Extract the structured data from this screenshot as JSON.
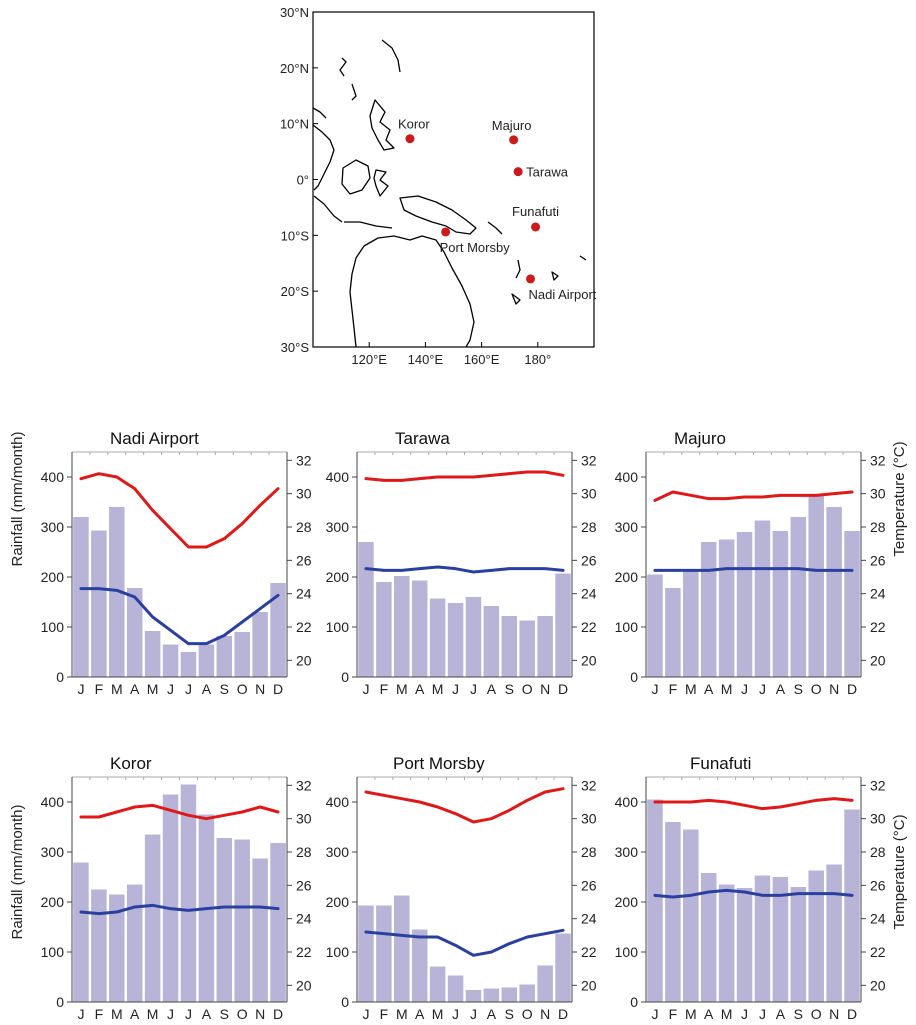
{
  "map": {
    "lat_labels": [
      "30°N",
      "20°N",
      "10°N",
      "0°",
      "10°S",
      "20°S",
      "30°S"
    ],
    "lon_labels": [
      "120°E",
      "140°E",
      "160°E",
      "180°"
    ],
    "sites": [
      {
        "name": "Koror",
        "lon": 134.5,
        "lat": 7.3
      },
      {
        "name": "Majuro",
        "lon": 171.4,
        "lat": 7.1
      },
      {
        "name": "Tarawa",
        "lon": 173.0,
        "lat": 1.4
      },
      {
        "name": "Funafuti",
        "lon": 179.2,
        "lat": -8.5
      },
      {
        "name": "Port Morsby",
        "lon": 147.2,
        "lat": -9.4
      },
      {
        "name": "Nadi Airport",
        "lon": 177.4,
        "lat": -17.8
      }
    ],
    "dot_color": "#cc1a1a"
  },
  "axes_text": {
    "left_label": "Rainfall (mm/month)",
    "right_label": "Temperature (°C)",
    "rain_ticks": [
      0,
      100,
      200,
      300,
      400
    ],
    "temp_ticks": [
      20,
      22,
      24,
      26,
      28,
      30,
      32
    ],
    "months": [
      "J",
      "F",
      "M",
      "A",
      "M",
      "J",
      "J",
      "A",
      "S",
      "O",
      "N",
      "D"
    ]
  },
  "chart_data": [
    {
      "type": "bar",
      "title": "Nadi Airport",
      "categories": [
        "J",
        "F",
        "M",
        "A",
        "M",
        "J",
        "J",
        "A",
        "S",
        "O",
        "N",
        "D"
      ],
      "ylim": [
        0,
        450
      ],
      "y2lim": [
        19,
        32.5
      ],
      "series": [
        {
          "kind": "bar",
          "axis": "left",
          "color": "#b8b4d8",
          "values": [
            320,
            293,
            340,
            178,
            92,
            65,
            50,
            65,
            82,
            90,
            130,
            188
          ]
        },
        {
          "kind": "line",
          "axis": "right",
          "color": "#e01818",
          "values": [
            30.9,
            31.2,
            31.0,
            30.3,
            29.0,
            27.9,
            26.8,
            26.8,
            27.3,
            28.2,
            29.3,
            30.3
          ]
        },
        {
          "kind": "line",
          "axis": "right",
          "color": "#2a40a0",
          "values": [
            24.3,
            24.3,
            24.2,
            23.8,
            22.6,
            21.8,
            21.0,
            21.0,
            21.5,
            22.3,
            23.1,
            23.9
          ]
        }
      ]
    },
    {
      "type": "bar",
      "title": "Tarawa",
      "categories": [
        "J",
        "F",
        "M",
        "A",
        "M",
        "J",
        "J",
        "A",
        "S",
        "O",
        "N",
        "D"
      ],
      "ylim": [
        0,
        450
      ],
      "y2lim": [
        19,
        32.5
      ],
      "series": [
        {
          "kind": "bar",
          "axis": "left",
          "color": "#b8b4d8",
          "values": [
            270,
            190,
            202,
            193,
            157,
            148,
            160,
            142,
            122,
            113,
            122,
            207
          ]
        },
        {
          "kind": "line",
          "axis": "right",
          "color": "#e01818",
          "values": [
            30.9,
            30.8,
            30.8,
            30.9,
            31.0,
            31.0,
            31.0,
            31.1,
            31.2,
            31.3,
            31.3,
            31.1
          ]
        },
        {
          "kind": "line",
          "axis": "right",
          "color": "#2a40a0",
          "values": [
            25.5,
            25.4,
            25.4,
            25.5,
            25.6,
            25.5,
            25.3,
            25.4,
            25.5,
            25.5,
            25.5,
            25.4
          ]
        }
      ]
    },
    {
      "type": "bar",
      "title": "Majuro",
      "categories": [
        "J",
        "F",
        "M",
        "A",
        "M",
        "J",
        "J",
        "A",
        "S",
        "O",
        "N",
        "D"
      ],
      "ylim": [
        0,
        450
      ],
      "y2lim": [
        19,
        32.5
      ],
      "series": [
        {
          "kind": "bar",
          "axis": "left",
          "color": "#b8b4d8",
          "values": [
            205,
            178,
            212,
            270,
            275,
            290,
            313,
            292,
            320,
            363,
            340,
            292
          ]
        },
        {
          "kind": "line",
          "axis": "right",
          "color": "#e01818",
          "values": [
            29.6,
            30.1,
            29.9,
            29.7,
            29.7,
            29.8,
            29.8,
            29.9,
            29.9,
            29.9,
            30.0,
            30.1
          ]
        },
        {
          "kind": "line",
          "axis": "right",
          "color": "#2a40a0",
          "values": [
            25.4,
            25.4,
            25.4,
            25.4,
            25.5,
            25.5,
            25.5,
            25.5,
            25.5,
            25.4,
            25.4,
            25.4
          ]
        }
      ]
    },
    {
      "type": "bar",
      "title": "Koror",
      "categories": [
        "J",
        "F",
        "M",
        "A",
        "M",
        "J",
        "J",
        "A",
        "S",
        "O",
        "N",
        "D"
      ],
      "ylim": [
        0,
        450
      ],
      "y2lim": [
        19,
        32.5
      ],
      "series": [
        {
          "kind": "bar",
          "axis": "left",
          "color": "#b8b4d8",
          "values": [
            279,
            225,
            215,
            235,
            335,
            415,
            435,
            375,
            328,
            325,
            287,
            318
          ]
        },
        {
          "kind": "line",
          "axis": "right",
          "color": "#e01818",
          "values": [
            30.1,
            30.1,
            30.4,
            30.7,
            30.8,
            30.5,
            30.2,
            30.0,
            30.2,
            30.4,
            30.7,
            30.4
          ]
        },
        {
          "kind": "line",
          "axis": "right",
          "color": "#2a40a0",
          "values": [
            24.4,
            24.3,
            24.4,
            24.7,
            24.8,
            24.6,
            24.5,
            24.6,
            24.7,
            24.7,
            24.7,
            24.6
          ]
        }
      ]
    },
    {
      "type": "bar",
      "title": "Port Morsby",
      "categories": [
        "J",
        "F",
        "M",
        "A",
        "M",
        "J",
        "J",
        "A",
        "S",
        "O",
        "N",
        "D"
      ],
      "ylim": [
        0,
        450
      ],
      "y2lim": [
        19,
        32.5
      ],
      "series": [
        {
          "kind": "bar",
          "axis": "left",
          "color": "#b8b4d8",
          "values": [
            193,
            193,
            213,
            145,
            71,
            53,
            24,
            27,
            29,
            35,
            73,
            137
          ]
        },
        {
          "kind": "line",
          "axis": "right",
          "color": "#e01818",
          "values": [
            31.6,
            31.4,
            31.2,
            31.0,
            30.7,
            30.3,
            29.8,
            30.0,
            30.5,
            31.1,
            31.6,
            31.8
          ]
        },
        {
          "kind": "line",
          "axis": "right",
          "color": "#2a40a0",
          "values": [
            23.2,
            23.1,
            23.0,
            22.9,
            22.9,
            22.4,
            21.8,
            22.0,
            22.5,
            22.9,
            23.1,
            23.3
          ]
        }
      ]
    },
    {
      "type": "bar",
      "title": "Funafuti",
      "categories": [
        "J",
        "F",
        "M",
        "A",
        "M",
        "J",
        "J",
        "A",
        "S",
        "O",
        "N",
        "D"
      ],
      "ylim": [
        0,
        450
      ],
      "y2lim": [
        19,
        32.5
      ],
      "series": [
        {
          "kind": "bar",
          "axis": "left",
          "color": "#b8b4d8",
          "values": [
            405,
            360,
            345,
            258,
            235,
            228,
            253,
            250,
            230,
            263,
            275,
            385
          ]
        },
        {
          "kind": "line",
          "axis": "right",
          "color": "#e01818",
          "values": [
            31.0,
            31.0,
            31.0,
            31.1,
            31.0,
            30.8,
            30.6,
            30.7,
            30.9,
            31.1,
            31.2,
            31.1
          ]
        },
        {
          "kind": "line",
          "axis": "right",
          "color": "#2a40a0",
          "values": [
            25.4,
            25.3,
            25.4,
            25.6,
            25.7,
            25.6,
            25.4,
            25.4,
            25.5,
            25.5,
            25.5,
            25.4
          ]
        }
      ]
    }
  ]
}
